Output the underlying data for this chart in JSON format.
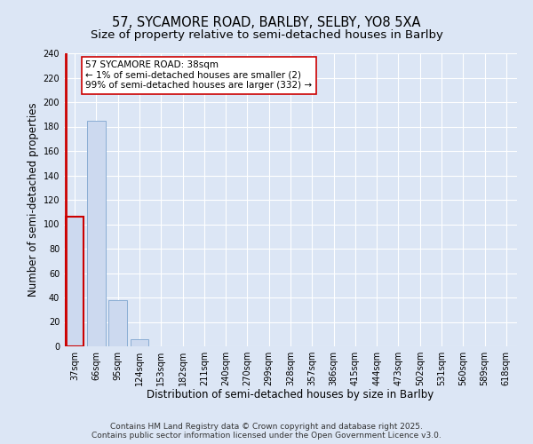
{
  "title_line1": "57, SYCAMORE ROAD, BARLBY, SELBY, YO8 5XA",
  "title_line2": "Size of property relative to semi-detached houses in Barlby",
  "xlabel": "Distribution of semi-detached houses by size in Barlby",
  "ylabel": "Number of semi-detached properties",
  "categories": [
    "37sqm",
    "66sqm",
    "95sqm",
    "124sqm",
    "153sqm",
    "182sqm",
    "211sqm",
    "240sqm",
    "270sqm",
    "299sqm",
    "328sqm",
    "357sqm",
    "386sqm",
    "415sqm",
    "444sqm",
    "473sqm",
    "502sqm",
    "531sqm",
    "560sqm",
    "589sqm",
    "618sqm"
  ],
  "values": [
    106,
    185,
    38,
    6,
    0,
    0,
    0,
    0,
    0,
    0,
    0,
    0,
    0,
    0,
    0,
    0,
    0,
    0,
    0,
    0,
    0
  ],
  "bar_color": "#ccd9ef",
  "bar_edge_color": "#8aadd4",
  "highlight_bar_index": 0,
  "highlight_color": "#cc0000",
  "annotation_line1": "57 SYCAMORE ROAD: 38sqm",
  "annotation_line2": "← 1% of semi-detached houses are smaller (2)",
  "annotation_line3": "99% of semi-detached houses are larger (332) →",
  "annotation_box_color": "#cc0000",
  "background_color": "#dce6f5",
  "plot_background_color": "#dce6f5",
  "ylim": [
    0,
    240
  ],
  "yticks": [
    0,
    20,
    40,
    60,
    80,
    100,
    120,
    140,
    160,
    180,
    200,
    220,
    240
  ],
  "footer_line1": "Contains HM Land Registry data © Crown copyright and database right 2025.",
  "footer_line2": "Contains public sector information licensed under the Open Government Licence v3.0.",
  "title_fontsize": 10.5,
  "subtitle_fontsize": 9.5,
  "axis_label_fontsize": 8.5,
  "tick_fontsize": 7,
  "annotation_fontsize": 7.5,
  "footer_fontsize": 6.5
}
